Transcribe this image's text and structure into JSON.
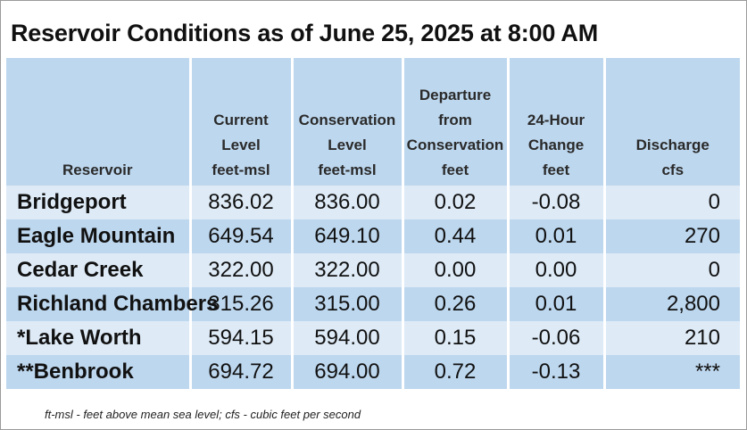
{
  "title": "Reservoir Conditions as of June 25, 2025 at 8:00 AM",
  "columns": [
    {
      "lines": [
        "Reservoir"
      ]
    },
    {
      "lines": [
        "Current",
        "Level",
        "feet-msl"
      ]
    },
    {
      "lines": [
        "Conservation",
        "Level",
        "feet-msl"
      ]
    },
    {
      "lines": [
        "Departure",
        "from",
        "Conservation",
        "feet"
      ]
    },
    {
      "lines": [
        "24-Hour",
        "Change",
        "feet"
      ]
    },
    {
      "lines": [
        "Discharge",
        "cfs"
      ]
    }
  ],
  "rows": [
    {
      "name": "Bridgeport",
      "current": "836.02",
      "conservation": "836.00",
      "departure": "0.02",
      "change": "-0.08",
      "discharge": "0"
    },
    {
      "name": "Eagle Mountain",
      "current": "649.54",
      "conservation": "649.10",
      "departure": "0.44",
      "change": "0.01",
      "discharge": "270"
    },
    {
      "name": "Cedar Creek",
      "current": "322.00",
      "conservation": "322.00",
      "departure": "0.00",
      "change": "0.00",
      "discharge": "0"
    },
    {
      "name": "Richland Chambers",
      "current": "315.26",
      "conservation": "315.00",
      "departure": "0.26",
      "change": "0.01",
      "discharge": "2,800"
    },
    {
      "name": "*Lake Worth",
      "current": "594.15",
      "conservation": "594.00",
      "departure": "0.15",
      "change": "-0.06",
      "discharge": "210"
    },
    {
      "name": "**Benbrook",
      "current": "694.72",
      "conservation": "694.00",
      "departure": "0.72",
      "change": "-0.13",
      "discharge": "***"
    }
  ],
  "footnote": "ft-msl - feet above mean sea level; cfs - cubic feet per second",
  "colors": {
    "header_bg": "#bdd7ee",
    "row_light": "#deebf7",
    "row_dark": "#bdd7ee"
  }
}
